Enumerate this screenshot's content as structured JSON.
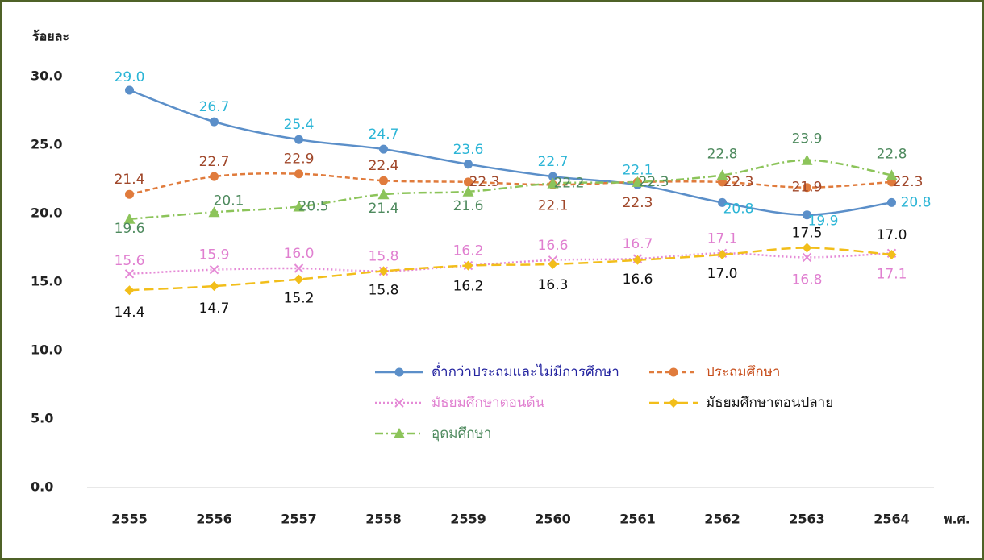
{
  "chart_data": {
    "type": "line",
    "y_label": "ร้อยละ",
    "x_label": "พ.ศ.",
    "categories": [
      "2555",
      "2556",
      "2557",
      "2558",
      "2559",
      "2560",
      "2561",
      "2562",
      "2563",
      "2564"
    ],
    "ylim": [
      0,
      30
    ],
    "yticks": [
      {
        "value": 0,
        "label": "0.0"
      },
      {
        "value": 5,
        "label": "5.0"
      },
      {
        "value": 10,
        "label": "10.0"
      },
      {
        "value": 15,
        "label": "15.0"
      },
      {
        "value": 20,
        "label": "20.0"
      },
      {
        "value": 25,
        "label": "25.0"
      },
      {
        "value": 30,
        "label": "30.0"
      }
    ],
    "series": [
      {
        "name": "ต่ำกว่าประถมและไม่มีการศึกษา",
        "color": "#5b8fc9",
        "label_color": "#2bb5d6",
        "legend_color": "#2424a0",
        "dash": "",
        "marker": "circle",
        "values": [
          29.0,
          26.7,
          25.4,
          24.7,
          23.6,
          22.7,
          22.1,
          20.8,
          19.9,
          20.8
        ],
        "value_labels": [
          "29.0",
          "26.7",
          "25.4",
          "24.7",
          "23.6",
          "22.7",
          "22.1",
          "20.8",
          "19.9",
          "20.8"
        ]
      },
      {
        "name": "ประถมศึกษา",
        "color": "#e07b3c",
        "label_color": "#a0472a",
        "legend_color": "#c8501e",
        "dash": "6 4",
        "marker": "circle",
        "values": [
          21.4,
          22.7,
          22.9,
          22.4,
          22.3,
          22.1,
          22.3,
          22.3,
          21.9,
          22.3
        ],
        "value_labels": [
          "21.4",
          "22.7",
          "22.9",
          "22.4",
          "22.3",
          "22.1",
          "22.3",
          "22.3",
          "21.9",
          "22.3"
        ]
      },
      {
        "name": "มัธยมศึกษาตอนต้น",
        "color": "#e58ad6",
        "label_color": "#e07fd0",
        "legend_color": "#e07fd0",
        "dash": "2 3",
        "marker": "x",
        "values": [
          15.6,
          15.9,
          16.0,
          15.8,
          16.2,
          16.6,
          16.7,
          17.1,
          16.8,
          17.1
        ],
        "value_labels": [
          "15.6",
          "15.9",
          "16.0",
          "15.8",
          "16.2",
          "16.6",
          "16.7",
          "17.1",
          "16.8",
          "17.1"
        ]
      },
      {
        "name": "มัธยมศึกษาตอนปลาย",
        "color": "#f2be1a",
        "label_color": "#111111",
        "legend_color": "#111111",
        "dash": "12 6",
        "marker": "diamond",
        "values": [
          14.4,
          14.7,
          15.2,
          15.8,
          16.2,
          16.3,
          16.6,
          17.0,
          17.5,
          17.0
        ],
        "value_labels": [
          "14.4",
          "14.7",
          "15.2",
          "15.8",
          "16.2",
          "16.3",
          "16.6",
          "17.0",
          "17.5",
          "17.0"
        ]
      },
      {
        "name": "อุดมศึกษา",
        "color": "#8cc45a",
        "label_color": "#4e8a5e",
        "legend_color": "#4e8a5e",
        "dash": "10 4 2 4",
        "marker": "triangle",
        "values": [
          19.6,
          20.1,
          20.5,
          21.4,
          21.6,
          22.2,
          22.3,
          22.8,
          23.9,
          22.8
        ],
        "value_labels": [
          "19.6",
          "20.1",
          "20.5",
          "21.4",
          "21.6",
          "22.2",
          "22.3",
          "22.8",
          "23.9",
          "22.8"
        ]
      }
    ]
  }
}
